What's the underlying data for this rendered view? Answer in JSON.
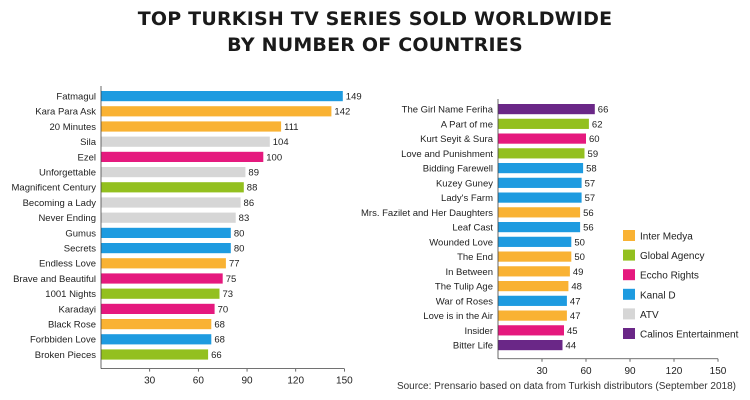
{
  "title_line1": "TOP TURKISH TV SERIES SOLD WORLDWIDE",
  "title_line2": "BY NUMBER OF COUNTRIES",
  "source": "Source: Prensario based on data from Turkish distributors (September 2018)",
  "colors": {
    "Inter Medya": "#f9b233",
    "Global Agency": "#93c01f",
    "Eccho Rights": "#e5197e",
    "Kanal D": "#1e9be0",
    "ATV": "#d6d6d6",
    "Calinos Entertainment": "#6a2787"
  },
  "chart_data": [
    {
      "type": "bar",
      "orientation": "horizontal",
      "categories": [
        "Fatmagul",
        "Kara Para Ask",
        "20 Minutes",
        "Sila",
        "Ezel",
        "Unforgettable",
        "Magnificent Century",
        "Becoming a Lady",
        "Never Ending",
        "Gumus",
        "Secrets",
        "Endless Love",
        "Brave and Beautiful",
        "1001 Nights",
        "Karadayi",
        "Black Rose",
        "Forbbiden Love",
        "Broken Pieces"
      ],
      "values": [
        149,
        142,
        111,
        104,
        100,
        89,
        88,
        86,
        83,
        80,
        80,
        77,
        75,
        73,
        70,
        68,
        68,
        66
      ],
      "distributors": [
        "Kanal D",
        "Inter Medya",
        "Inter Medya",
        "ATV",
        "Eccho Rights",
        "ATV",
        "Global Agency",
        "ATV",
        "ATV",
        "Kanal D",
        "Kanal D",
        "Inter Medya",
        "Eccho Rights",
        "Global Agency",
        "Eccho Rights",
        "Inter Medya",
        "Kanal D",
        "Global Agency"
      ],
      "xticks": [
        "30",
        "60",
        "90",
        "120",
        "150"
      ],
      "xlim": [
        0,
        150
      ]
    },
    {
      "type": "bar",
      "orientation": "horizontal",
      "categories": [
        "The Girl Name Feriha",
        "A Part of me",
        "Kurt Seyit & Sura",
        "Love and Punishment",
        "Bidding Farewell",
        "Kuzey Guney",
        "Lady's Farm",
        "Mrs. Fazilet and Her Daughters",
        "Leaf Cast",
        "Wounded Love",
        "The End",
        "In Between",
        "The Tulip Age",
        "War of Roses",
        "Love is in the Air",
        "Insider",
        "Bitter Life"
      ],
      "values": [
        66,
        62,
        60,
        59,
        58,
        57,
        57,
        56,
        56,
        50,
        50,
        49,
        48,
        47,
        47,
        45,
        44
      ],
      "distributors": [
        "Calinos Entertainment",
        "Global Agency",
        "Eccho Rights",
        "Global Agency",
        "Kanal D",
        "Kanal D",
        "Kanal D",
        "Inter Medya",
        "Kanal D",
        "Kanal D",
        "Inter Medya",
        "Inter Medya",
        "Inter Medya",
        "Kanal D",
        "Inter Medya",
        "Eccho Rights",
        "Calinos Entertainment"
      ],
      "xticks": [
        "30",
        "60",
        "90",
        "120",
        "150"
      ],
      "xlim": [
        0,
        150
      ]
    }
  ],
  "legend": [
    "Inter Medya",
    "Global Agency",
    "Eccho Rights",
    "Kanal D",
    "ATV",
    "Calinos Entertainment"
  ]
}
